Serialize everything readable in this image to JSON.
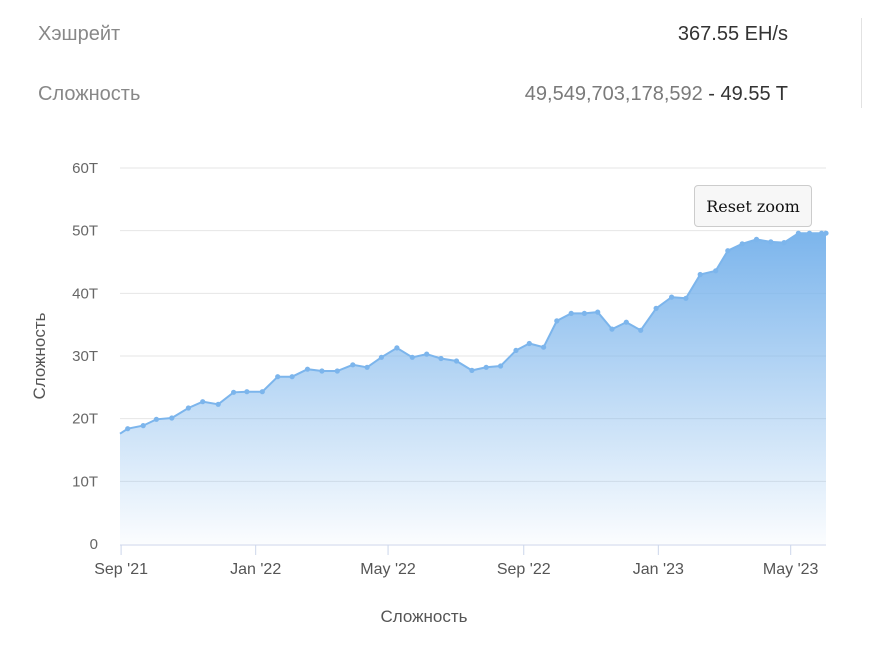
{
  "stats": {
    "hashrate": {
      "label": "Хэшрейт",
      "value": "367.55 EH/s"
    },
    "difficulty": {
      "label": "Сложность",
      "value_full": "49,549,703,178,592",
      "separator": " - ",
      "value_short": "49.55 T"
    }
  },
  "reset_zoom_label": "Reset zoom",
  "chart_data": {
    "type": "area",
    "title": "",
    "xlabel": "Сложность",
    "ylabel": "Сложность",
    "ylim": [
      0,
      60
    ],
    "y_unit": "T",
    "y_ticks": [
      "0",
      "10T",
      "20T",
      "30T",
      "40T",
      "50T",
      "60T"
    ],
    "x_ticks": [
      "Sep '21",
      "Jan '22",
      "May '22",
      "Sep '22",
      "Jan '23",
      "May '23"
    ],
    "x_range": [
      "2021-08-31",
      "2023-06-02"
    ],
    "grid": true,
    "legend": "none",
    "color": "#7cb5ec",
    "series": [
      {
        "x": [
          "2021-08-31",
          "2021-09-07",
          "2021-09-21",
          "2021-10-03",
          "2021-10-17",
          "2021-11-01",
          "2021-11-14",
          "2021-11-28",
          "2021-12-12",
          "2021-12-24",
          "2022-01-07",
          "2022-01-21",
          "2022-02-03",
          "2022-02-17",
          "2022-03-02",
          "2022-03-16",
          "2022-03-30",
          "2022-04-12",
          "2022-04-25",
          "2022-05-09",
          "2022-05-23",
          "2022-06-05",
          "2022-06-18",
          "2022-07-02",
          "2022-07-16",
          "2022-07-29",
          "2022-08-11",
          "2022-08-25",
          "2022-09-06",
          "2022-09-19",
          "2022-10-01",
          "2022-10-14",
          "2022-10-26",
          "2022-11-07",
          "2022-11-20",
          "2022-12-03",
          "2022-12-16",
          "2022-12-30",
          "2023-01-13",
          "2023-01-26",
          "2023-02-08",
          "2023-02-22",
          "2023-03-05",
          "2023-03-18",
          "2023-03-31",
          "2023-04-13",
          "2023-04-25",
          "2023-05-08",
          "2023-05-18",
          "2023-05-29",
          "2023-06-02"
        ],
        "y": [
          17.6,
          18.4,
          18.9,
          19.9,
          20.1,
          21.7,
          22.7,
          22.3,
          24.2,
          24.3,
          24.3,
          26.7,
          26.7,
          27.9,
          27.6,
          27.6,
          28.6,
          28.2,
          29.8,
          31.3,
          29.8,
          30.3,
          29.6,
          29.2,
          27.7,
          28.2,
          28.4,
          30.9,
          32.0,
          31.4,
          35.6,
          36.8,
          36.8,
          37.0,
          34.3,
          35.4,
          34.1,
          37.6,
          39.4,
          39.2,
          43.0,
          43.6,
          46.8,
          47.9,
          48.6,
          48.2,
          48.1,
          49.6,
          49.6,
          49.6,
          49.6
        ]
      }
    ]
  }
}
